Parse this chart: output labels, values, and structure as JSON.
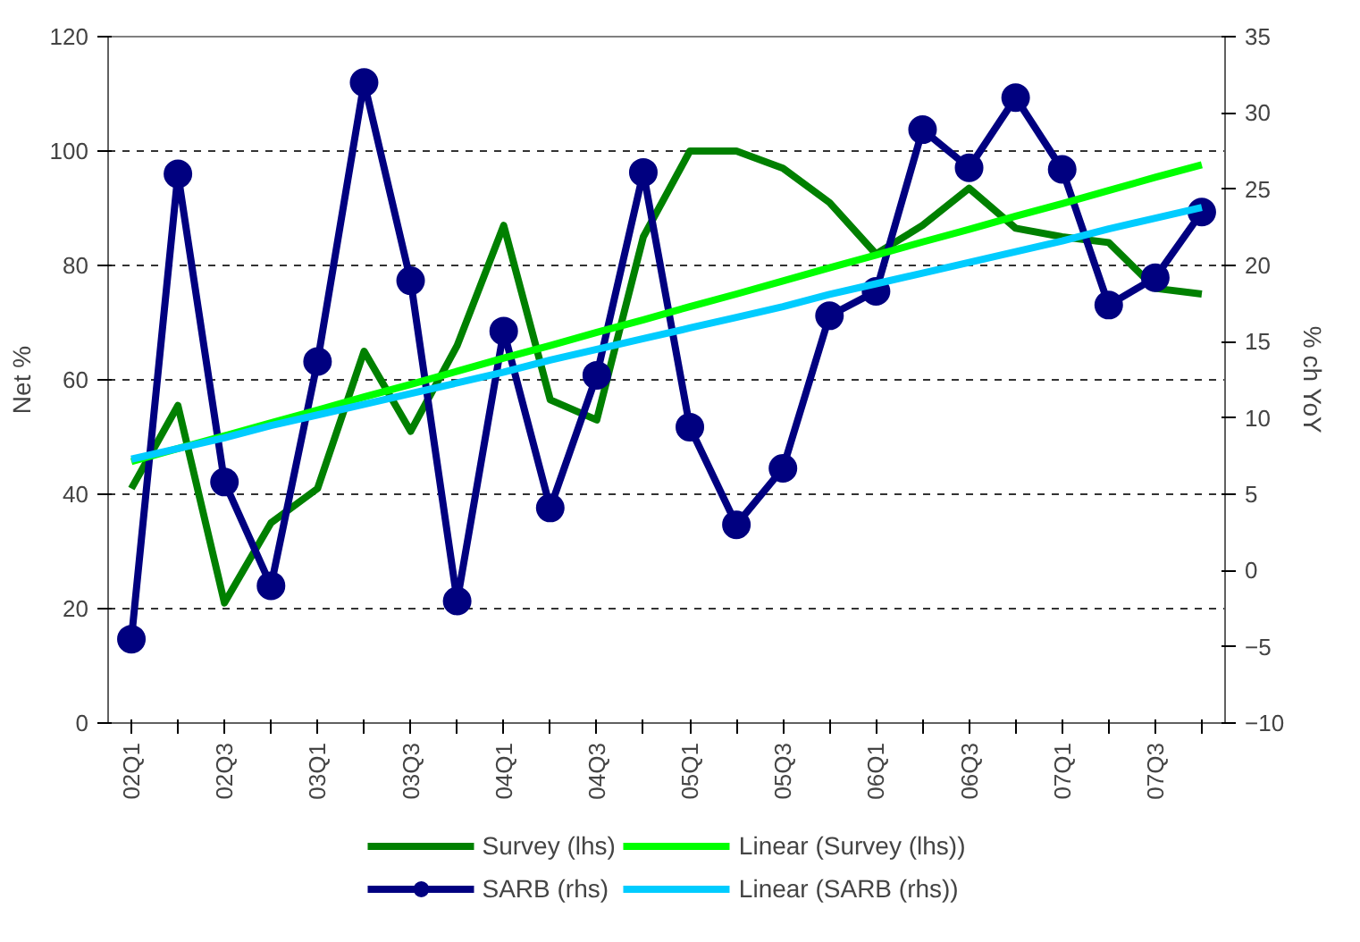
{
  "chart_data": {
    "type": "line",
    "xlabel": null,
    "ylabel": "Net %",
    "y2label": "% ch YoY",
    "categories": [
      "02Q1",
      null,
      "02Q3",
      null,
      "03Q1",
      null,
      "03Q3",
      null,
      "04Q1",
      null,
      "04Q3",
      null,
      "05Q1",
      null,
      "05Q3",
      null,
      "06Q1",
      null,
      "06Q3",
      null,
      "07Q1",
      null,
      "07Q3",
      null
    ],
    "series": [
      {
        "name": "Survey (lhs)",
        "color": "#008000",
        "marker": "none",
        "values": [
          41,
          55.5,
          21,
          35,
          41,
          65,
          51,
          66,
          87,
          56.5,
          53,
          85,
          100,
          100,
          97,
          91,
          82,
          87,
          93.5,
          86.5,
          85,
          84,
          76,
          75
        ]
      },
      {
        "name": "SARB (rhs)",
        "color": "#000080",
        "marker": "circle",
        "axis": "y2",
        "values": [
          -4.5,
          26,
          5.8,
          -1,
          13.7,
          32,
          19,
          -2,
          15.7,
          4.1,
          12.8,
          26.1,
          9.4,
          3,
          6.7,
          16.7,
          18.3,
          28.9,
          26.4,
          31,
          26.3,
          17.4,
          19.2,
          23.5
        ]
      },
      {
        "name": "Linear (Survey (lhs))",
        "color": "#00ff00",
        "marker": "none",
        "values": [
          45.7,
          48,
          50.2,
          52.5,
          54.7,
          57,
          59.2,
          61.5,
          63.8,
          66,
          68.3,
          70.5,
          72.8,
          75,
          77.3,
          79.6,
          81.8,
          84.1,
          86.3,
          88.6,
          90.8,
          93.1,
          95.4,
          97.6
        ]
      },
      {
        "name": "Linear (SARB (rhs))",
        "color": "#00ccff",
        "marker": "none",
        "axis": "y2",
        "values": [
          7.3,
          8,
          8.7,
          9.5,
          10.2,
          10.9,
          11.6,
          12.3,
          13,
          13.8,
          14.5,
          15.2,
          15.9,
          16.6,
          17.3,
          18.1,
          18.8,
          19.5,
          20.2,
          20.9,
          21.6,
          22.4,
          23.1,
          23.8
        ]
      }
    ],
    "ylim": [
      0,
      120
    ],
    "yticks": [
      0,
      20,
      40,
      60,
      80,
      100,
      120
    ],
    "y2lim": [
      -10,
      35
    ],
    "y2ticks": [
      -10,
      -5,
      0,
      5,
      10,
      15,
      20,
      25,
      30,
      35
    ],
    "grid": "y",
    "legend": "bottom"
  }
}
